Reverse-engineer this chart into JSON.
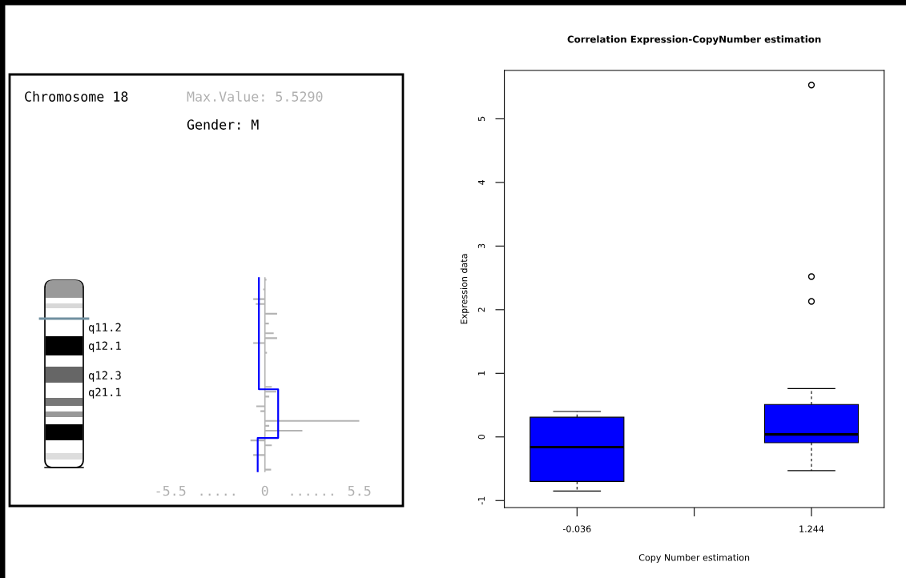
{
  "chart_data": [
    {
      "type": "bar",
      "orientation": "horizontal",
      "title": "Chromosome 18",
      "annotations": [
        "Max.Value: 5.5290",
        "Gender: M",
        "q11.2",
        "q12.1",
        "q12.3",
        "q21.1"
      ],
      "categories": [
        null,
        null,
        null,
        null,
        null,
        null,
        null,
        null,
        null,
        null,
        null,
        null,
        null,
        null,
        null,
        null,
        null,
        null,
        null,
        null,
        null,
        null,
        null,
        null,
        null,
        null,
        null,
        null,
        null,
        null,
        null,
        null,
        null,
        null,
        null,
        null,
        null,
        null,
        null,
        null
      ],
      "series": [
        {
          "color": "#b4b4b4",
          "values": [
            0.09,
            null,
            -0.1,
            null,
            -0.68,
            -0.53,
            null,
            0.71,
            null,
            0.23,
            null,
            0.51,
            0.71,
            -0.68,
            null,
            0.12,
            null,
            null,
            null,
            null,
            null,
            null,
            0.4,
            0.67,
            0.25,
            null,
            -0.5,
            -0.26,
            null,
            5.5,
            0.25,
            2.18,
            null,
            -0.84,
            0.4,
            null,
            -0.68,
            null,
            null,
            0.36
          ]
        },
        {
          "type": "step",
          "color": "#0000ff",
          "values": [
            -0.35,
            -0.35,
            -0.35,
            -0.35,
            -0.35,
            -0.35,
            -0.35,
            -0.35,
            -0.35,
            -0.35,
            -0.35,
            -0.35,
            -0.35,
            -0.35,
            -0.35,
            -0.35,
            -0.35,
            -0.35,
            -0.35,
            -0.35,
            -0.35,
            -0.35,
            -0.35,
            0.77,
            0.77,
            0.77,
            0.77,
            0.77,
            0.77,
            0.77,
            0.77,
            0.77,
            0.77,
            -0.42,
            -0.42,
            -0.42,
            -0.42,
            -0.42,
            -0.42,
            -0.42
          ]
        }
      ],
      "xlim": [
        -5.5,
        5.5
      ],
      "xticks": [
        {
          "value": -5.5,
          "label": "-5.5"
        },
        {
          "value": -2.75,
          "label": "....."
        },
        0,
        {
          "value": 2.75,
          "label": "......"
        },
        {
          "value": 5.5,
          "label": "5.5"
        }
      ],
      "ref_lines": [
        {
          "axis": "x",
          "value": 0,
          "color": "#b4b4b4"
        }
      ]
    },
    {
      "type": "box",
      "title": "Correlation Expression-CopyNumber estimation",
      "xlabel": "Copy Number estimation",
      "ylabel": "Expression data",
      "categories": [
        "-0.036",
        "1.244"
      ],
      "color": "#0000ff",
      "boxes": [
        {
          "low": -0.85,
          "q1": -0.7,
          "median": -0.16,
          "q3": 0.31,
          "high": 0.4
        },
        {
          "low": -0.53,
          "q1": -0.09,
          "median": 0.04,
          "q3": 0.51,
          "high": 0.76,
          "outliers": [
            2.13,
            2.52,
            5.53
          ]
        }
      ],
      "ylim": [
        -1.11,
        5.76
      ],
      "yticks": [
        -1,
        0,
        1,
        2,
        3,
        4,
        5
      ]
    }
  ]
}
